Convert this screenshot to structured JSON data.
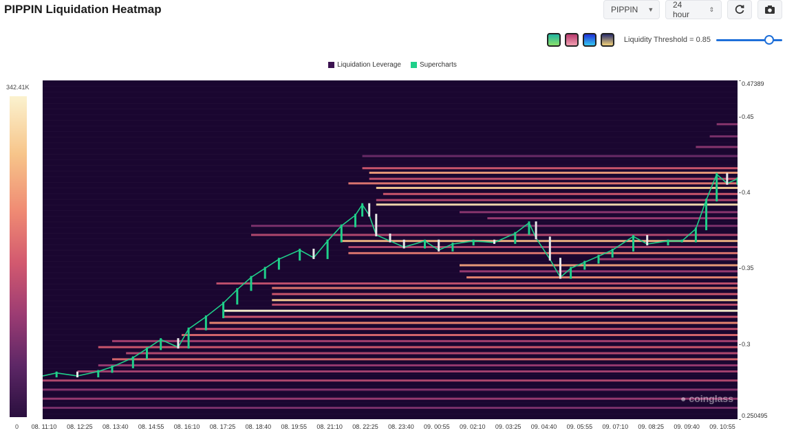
{
  "header": {
    "title": "PIPPIN Liquidation Heatmap"
  },
  "toolbar": {
    "symbol": "PIPPIN",
    "interval": "24 hour",
    "refresh_icon": "refresh-icon",
    "screenshot_icon": "camera-icon"
  },
  "threshold": {
    "label": "Liquidity Threshold = 0.85",
    "value": 0.85,
    "slider_range": [
      0,
      1
    ]
  },
  "palettes": [
    {
      "name": "palette-teal",
      "colors": [
        "#1fb4a0",
        "#8be06a"
      ]
    },
    {
      "name": "palette-pink",
      "colors": [
        "#b83a6e",
        "#f29fb0"
      ]
    },
    {
      "name": "palette-blue",
      "colors": [
        "#1f2fd6",
        "#36c8f2"
      ]
    },
    {
      "name": "palette-gold",
      "colors": [
        "#2a2f6e",
        "#f2d27a"
      ]
    }
  ],
  "watermark": "coinglass",
  "chart_data": {
    "type": "heatmap",
    "legend": [
      {
        "name": "Liquidation Leverage",
        "color": "#3b1250"
      },
      {
        "name": "Supercharts",
        "color": "#1fd08a"
      }
    ],
    "colorbar": {
      "max_label": "342.41K",
      "min_label": "0",
      "max": 342410,
      "min": 0
    },
    "y_axis": {
      "min": 0.250495,
      "max": 0.47389,
      "ticks": [
        {
          "label": "0.47389",
          "value": 0.47389
        },
        {
          "label": "0.45",
          "value": 0.45
        },
        {
          "label": "0.4",
          "value": 0.4
        },
        {
          "label": "0.35",
          "value": 0.35
        },
        {
          "label": "0.3",
          "value": 0.3
        },
        {
          "label": "0.250495",
          "value": 0.250495
        }
      ]
    },
    "x_axis": {
      "ticks": [
        "08. 11:10",
        "08. 12:25",
        "08. 13:40",
        "08. 14:55",
        "08. 16:10",
        "08. 17:25",
        "08. 18:40",
        "08. 19:55",
        "08. 21:10",
        "08. 22:25",
        "08. 23:40",
        "09. 00:55",
        "09. 02:10",
        "09. 03:25",
        "09. 04:40",
        "09. 05:55",
        "09. 07:10",
        "09. 08:25",
        "09. 09:40",
        "09. 10:55"
      ]
    },
    "price_path": [
      [
        0,
        0.279
      ],
      [
        0.02,
        0.281
      ],
      [
        0.05,
        0.279
      ],
      [
        0.08,
        0.282
      ],
      [
        0.1,
        0.285
      ],
      [
        0.13,
        0.291
      ],
      [
        0.15,
        0.297
      ],
      [
        0.17,
        0.303
      ],
      [
        0.195,
        0.298
      ],
      [
        0.21,
        0.31
      ],
      [
        0.235,
        0.318
      ],
      [
        0.26,
        0.327
      ],
      [
        0.28,
        0.336
      ],
      [
        0.3,
        0.344
      ],
      [
        0.32,
        0.35
      ],
      [
        0.34,
        0.356
      ],
      [
        0.37,
        0.362
      ],
      [
        0.39,
        0.357
      ],
      [
        0.41,
        0.368
      ],
      [
        0.43,
        0.378
      ],
      [
        0.45,
        0.385
      ],
      [
        0.46,
        0.392
      ],
      [
        0.47,
        0.385
      ],
      [
        0.48,
        0.372
      ],
      [
        0.5,
        0.368
      ],
      [
        0.52,
        0.364
      ],
      [
        0.55,
        0.368
      ],
      [
        0.57,
        0.362
      ],
      [
        0.59,
        0.366
      ],
      [
        0.62,
        0.368
      ],
      [
        0.65,
        0.367
      ],
      [
        0.68,
        0.373
      ],
      [
        0.7,
        0.38
      ],
      [
        0.71,
        0.37
      ],
      [
        0.73,
        0.356
      ],
      [
        0.745,
        0.344
      ],
      [
        0.76,
        0.35
      ],
      [
        0.78,
        0.354
      ],
      [
        0.8,
        0.358
      ],
      [
        0.82,
        0.362
      ],
      [
        0.85,
        0.371
      ],
      [
        0.87,
        0.366
      ],
      [
        0.9,
        0.368
      ],
      [
        0.92,
        0.368
      ],
      [
        0.94,
        0.376
      ],
      [
        0.955,
        0.395
      ],
      [
        0.97,
        0.412
      ],
      [
        0.985,
        0.406
      ],
      [
        1.0,
        0.409
      ]
    ],
    "levels": [
      {
        "price": 0.445,
        "start": 0.97,
        "intensity": 0.35
      },
      {
        "price": 0.437,
        "start": 0.96,
        "intensity": 0.3
      },
      {
        "price": 0.43,
        "start": 0.94,
        "intensity": 0.35
      },
      {
        "price": 0.424,
        "start": 0.46,
        "intensity": 0.25
      },
      {
        "price": 0.416,
        "start": 0.46,
        "intensity": 0.6
      },
      {
        "price": 0.413,
        "start": 0.47,
        "intensity": 0.8
      },
      {
        "price": 0.409,
        "start": 0.47,
        "intensity": 0.55
      },
      {
        "price": 0.406,
        "start": 0.44,
        "intensity": 0.7
      },
      {
        "price": 0.403,
        "start": 0.48,
        "intensity": 0.9
      },
      {
        "price": 0.399,
        "start": 0.49,
        "intensity": 0.6
      },
      {
        "price": 0.395,
        "start": 0.48,
        "intensity": 0.5
      },
      {
        "price": 0.392,
        "start": 0.48,
        "intensity": 0.95
      },
      {
        "price": 0.387,
        "start": 0.6,
        "intensity": 0.35
      },
      {
        "price": 0.383,
        "start": 0.64,
        "intensity": 0.4
      },
      {
        "price": 0.378,
        "start": 0.3,
        "intensity": 0.3
      },
      {
        "price": 0.372,
        "start": 0.3,
        "intensity": 0.5
      },
      {
        "price": 0.368,
        "start": 0.43,
        "intensity": 0.85
      },
      {
        "price": 0.364,
        "start": 0.44,
        "intensity": 0.5
      },
      {
        "price": 0.36,
        "start": 0.44,
        "intensity": 0.7
      },
      {
        "price": 0.356,
        "start": 0.8,
        "intensity": 0.45
      },
      {
        "price": 0.352,
        "start": 0.6,
        "intensity": 0.8
      },
      {
        "price": 0.348,
        "start": 0.6,
        "intensity": 0.4
      },
      {
        "price": 0.344,
        "start": 0.61,
        "intensity": 0.75
      },
      {
        "price": 0.34,
        "start": 0.25,
        "intensity": 0.55
      },
      {
        "price": 0.337,
        "start": 0.33,
        "intensity": 0.7
      },
      {
        "price": 0.333,
        "start": 0.33,
        "intensity": 0.6
      },
      {
        "price": 0.329,
        "start": 0.33,
        "intensity": 0.9
      },
      {
        "price": 0.326,
        "start": 0.33,
        "intensity": 0.55
      },
      {
        "price": 0.322,
        "start": 0.26,
        "intensity": 1.0
      },
      {
        "price": 0.318,
        "start": 0.26,
        "intensity": 0.6
      },
      {
        "price": 0.314,
        "start": 0.24,
        "intensity": 0.75
      },
      {
        "price": 0.31,
        "start": 0.22,
        "intensity": 0.55
      },
      {
        "price": 0.306,
        "start": 0.2,
        "intensity": 0.65
      },
      {
        "price": 0.302,
        "start": 0.1,
        "intensity": 0.45
      },
      {
        "price": 0.298,
        "start": 0.08,
        "intensity": 0.6
      },
      {
        "price": 0.294,
        "start": 0.12,
        "intensity": 0.5
      },
      {
        "price": 0.29,
        "start": 0.1,
        "intensity": 0.65
      },
      {
        "price": 0.286,
        "start": 0.08,
        "intensity": 0.4
      },
      {
        "price": 0.282,
        "start": 0.05,
        "intensity": 0.45
      },
      {
        "price": 0.276,
        "start": 0.0,
        "intensity": 0.5
      },
      {
        "price": 0.27,
        "start": 0.0,
        "intensity": 0.35
      },
      {
        "price": 0.264,
        "start": 0.0,
        "intensity": 0.4
      },
      {
        "price": 0.258,
        "start": 0.0,
        "intensity": 0.3
      }
    ]
  }
}
